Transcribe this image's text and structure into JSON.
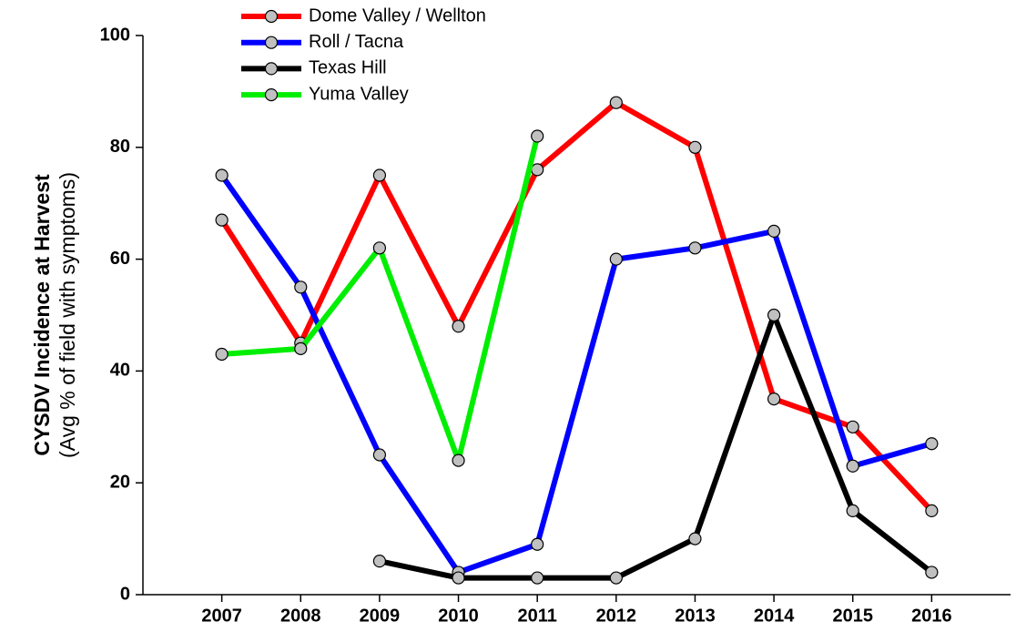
{
  "chart_data": {
    "type": "line",
    "ylabel": "CYSDV Incidence at Harvest",
    "ylabel_sub": "(Avg % of field with symptoms)",
    "x": [
      2007,
      2008,
      2009,
      2010,
      2011,
      2012,
      2013,
      2014,
      2015,
      2016
    ],
    "xlim": [
      2006,
      2017
    ],
    "xticks": [
      2007,
      2008,
      2009,
      2010,
      2011,
      2012,
      2013,
      2014,
      2015,
      2016
    ],
    "ylim": [
      0,
      100
    ],
    "yticks": [
      0,
      20,
      40,
      60,
      80,
      100
    ],
    "legend": "top-left",
    "series": [
      {
        "name": "Dome Valley / Wellton",
        "color": "#ff0000",
        "values": [
          67,
          45,
          75,
          48,
          76,
          88,
          80,
          35,
          30,
          15
        ]
      },
      {
        "name": "Roll / Tacna",
        "color": "#0000ff",
        "values": [
          75,
          55,
          25,
          4,
          9,
          60,
          62,
          65,
          23,
          27
        ]
      },
      {
        "name": "Texas Hill",
        "color": "#000000",
        "values": [
          null,
          null,
          6,
          3,
          3,
          3,
          10,
          50,
          15,
          4
        ]
      },
      {
        "name": "Yuma Valley",
        "color": "#00ee00",
        "values": [
          43,
          44,
          62,
          24,
          82,
          null,
          null,
          null,
          null,
          null
        ]
      }
    ]
  }
}
